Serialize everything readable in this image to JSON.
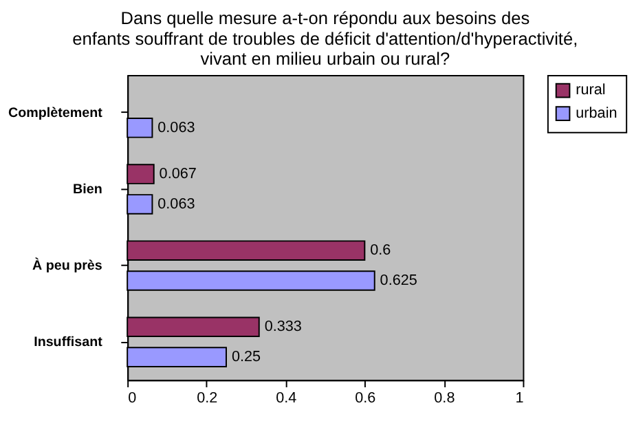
{
  "chart_data": {
    "type": "bar",
    "orientation": "horizontal",
    "title": "Dans quelle mesure a-t-on répondu aux besoins des\nenfants souffrant de troubles de déficit d'attention/d'hyperactivité,\nvivant en milieu urbain ou rural?",
    "categories": [
      "Complètement",
      "Bien",
      "À peu près",
      "Insuffisant"
    ],
    "series": [
      {
        "name": "rural",
        "color": "#993366",
        "values": [
          null,
          0.067,
          0.6,
          0.333
        ]
      },
      {
        "name": "urbain",
        "color": "#9999ff",
        "values": [
          0.063,
          0.063,
          0.625,
          0.25
        ]
      }
    ],
    "xlim": [
      0,
      1
    ],
    "xticks": [
      0,
      0.2,
      0.4,
      0.6,
      0.8,
      1
    ],
    "data_labels": true,
    "grid": false,
    "legend": "right"
  }
}
